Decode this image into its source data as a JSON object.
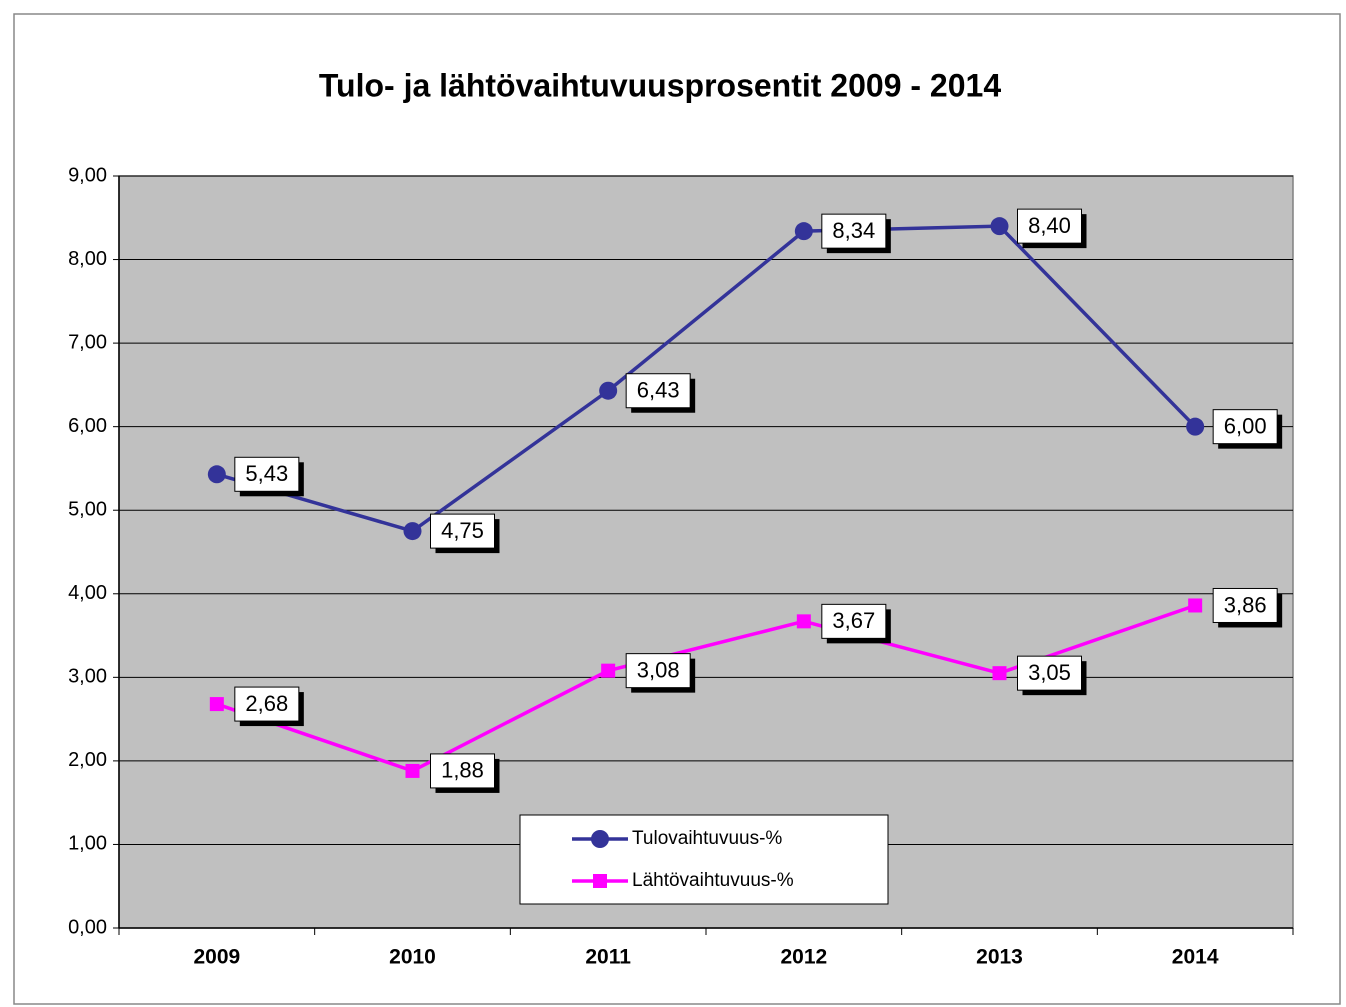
{
  "chart_data": {
    "type": "line",
    "title": "Tulo- ja lähtövaihtuvuusprosentit  2009 - 2014",
    "categories": [
      "2009",
      "2010",
      "2011",
      "2012",
      "2013",
      "2014"
    ],
    "series": [
      {
        "name": "Tulovaihtuvuus-%",
        "color": "#333399",
        "marker": "circle",
        "values": [
          5.43,
          4.75,
          6.43,
          8.34,
          8.4,
          6.0
        ],
        "value_labels": [
          "5,43",
          "4,75",
          "6,43",
          "8,34",
          "8,40",
          "6,00"
        ]
      },
      {
        "name": "Lähtövaihtuvuus-%",
        "color": "#ff00ff",
        "marker": "square",
        "values": [
          2.68,
          1.88,
          3.08,
          3.67,
          3.05,
          3.86
        ],
        "value_labels": [
          "2,68",
          "1,88",
          "3,08",
          "3,67",
          "3,05",
          "3,86"
        ]
      }
    ],
    "ylim": [
      0,
      9
    ],
    "yticks": [
      {
        "value": 0,
        "label": "0,00"
      },
      {
        "value": 1,
        "label": "1,00"
      },
      {
        "value": 2,
        "label": "2,00"
      },
      {
        "value": 3,
        "label": "3,00"
      },
      {
        "value": 4,
        "label": "4,00"
      },
      {
        "value": 5,
        "label": "5,00"
      },
      {
        "value": 6,
        "label": "6,00"
      },
      {
        "value": 7,
        "label": "7,00"
      },
      {
        "value": 8,
        "label": "8,00"
      },
      {
        "value": 9,
        "label": "9,00"
      }
    ],
    "grid": true,
    "legend": "bottom-center"
  }
}
